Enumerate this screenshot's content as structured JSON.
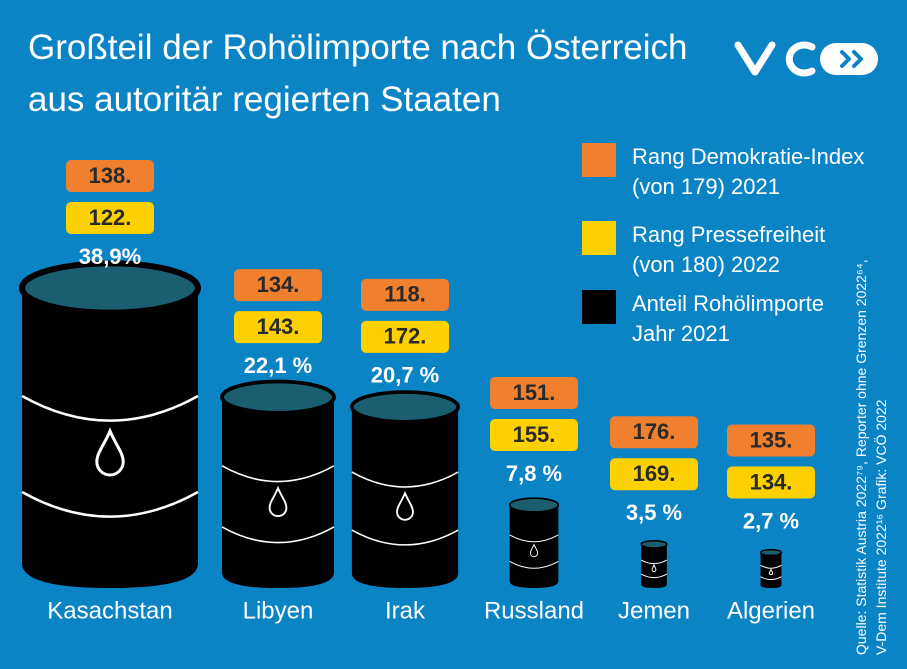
{
  "chart_data": {
    "type": "pictogram",
    "title": "Großteil der Rohölimporte nach Österreich\naus autoritär regierten Staaten",
    "categories": [
      "Kasachstan",
      "Libyen",
      "Irak",
      "Russland",
      "Jemen",
      "Algerien"
    ],
    "series": [
      {
        "name": "Rang Demokratie-Index\n(von 179) 2021",
        "color": "#f07f2e",
        "values": [
          138,
          134,
          118,
          151,
          176,
          135
        ],
        "value_labels": [
          "138.",
          "134.",
          "118.",
          "151.",
          "176.",
          "135."
        ]
      },
      {
        "name": "Rang Pressefreiheit\n(von 180) 2022",
        "color": "#fdd000",
        "values": [
          122,
          143,
          172,
          155,
          169,
          134
        ],
        "value_labels": [
          "122.",
          "143.",
          "172.",
          "155.",
          "169.",
          "134."
        ]
      },
      {
        "name": "Anteil Rohölimporte\nJahr 2021",
        "color": "#000000",
        "values": [
          38.9,
          22.1,
          20.7,
          7.8,
          3.5,
          2.7
        ],
        "value_labels": [
          "38,9%",
          "22,1 %",
          "20,7 %",
          "7,8 %",
          "3,5 %",
          "2,7 %"
        ]
      }
    ],
    "source": "Quelle: Statistik Austria 2022⁷⁹, Reporter ohne Grenzen 2022⁶⁴,\nV-Dem Institute 2022¹⁶ Grafik: VCÖ 2022"
  }
}
